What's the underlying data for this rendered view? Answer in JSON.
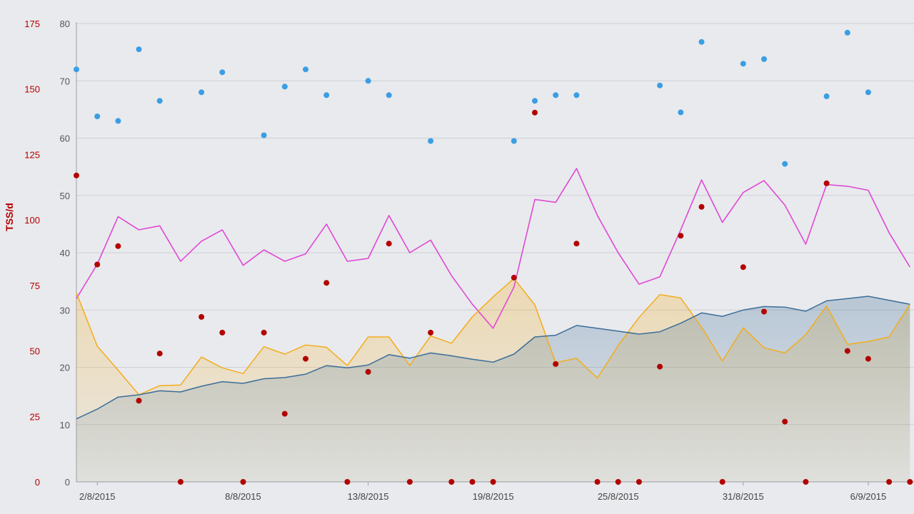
{
  "chart_data": {
    "type": "line",
    "title": "",
    "xlabel": "",
    "x_tick_labels": [
      "2/8/2015",
      "8/8/2015",
      "13/8/2015",
      "19/8/2015",
      "25/8/2015",
      "31/8/2015",
      "6/9/2015"
    ],
    "x_tick_indices": [
      1,
      8,
      14,
      20,
      26,
      32,
      38
    ],
    "x_range": [
      0,
      40
    ],
    "left_axis": {
      "label": "TSS/d",
      "ticks": [
        0,
        25,
        50,
        75,
        100,
        125,
        150,
        175
      ],
      "range": [
        0,
        175
      ],
      "color": "#b30000"
    },
    "inner_axis": {
      "ticks": [
        0,
        10,
        20,
        30,
        40,
        50,
        60,
        70,
        80
      ],
      "range": [
        0,
        80
      ],
      "color": "#555555"
    },
    "grid": true,
    "series": [
      {
        "kind": "scatter",
        "axis": "inner",
        "color": "#3a9ee4",
        "points": [
          [
            0,
            72
          ],
          [
            1,
            63.8
          ],
          [
            2,
            63
          ],
          [
            3,
            75.5
          ],
          [
            4,
            66.5
          ],
          [
            6,
            68
          ],
          [
            7,
            71.5
          ],
          [
            9,
            60.5
          ],
          [
            10,
            69
          ],
          [
            11,
            72
          ],
          [
            12,
            67.5
          ],
          [
            14,
            70
          ],
          [
            15,
            67.5
          ],
          [
            17,
            59.5
          ],
          [
            21,
            59.5
          ],
          [
            22,
            66.5
          ],
          [
            23,
            67.5
          ],
          [
            24,
            67.5
          ],
          [
            28,
            69.2
          ],
          [
            29,
            64.5
          ],
          [
            30,
            76.8
          ],
          [
            32,
            73
          ],
          [
            33,
            73.8
          ],
          [
            34,
            55.5
          ],
          [
            36,
            67.3
          ],
          [
            37,
            78.4
          ],
          [
            38,
            68
          ]
        ]
      },
      {
        "kind": "scatter",
        "axis": "left",
        "color": "#b30000",
        "points": [
          [
            0,
            117
          ],
          [
            1,
            83
          ],
          [
            2,
            90
          ],
          [
            3,
            31
          ],
          [
            4,
            49
          ],
          [
            5,
            0
          ],
          [
            6,
            63
          ],
          [
            7,
            57
          ],
          [
            8,
            0
          ],
          [
            9,
            57
          ],
          [
            10,
            26
          ],
          [
            11,
            47
          ],
          [
            12,
            76
          ],
          [
            13,
            0
          ],
          [
            14,
            42
          ],
          [
            15,
            91
          ],
          [
            16,
            0
          ],
          [
            17,
            57
          ],
          [
            18,
            0
          ],
          [
            19,
            0
          ],
          [
            20,
            0
          ],
          [
            21,
            78
          ],
          [
            22,
            141
          ],
          [
            23,
            45
          ],
          [
            24,
            91
          ],
          [
            25,
            0
          ],
          [
            26,
            0
          ],
          [
            27,
            0
          ],
          [
            28,
            44
          ],
          [
            29,
            94
          ],
          [
            30,
            105
          ],
          [
            31,
            0
          ],
          [
            32,
            82
          ],
          [
            33,
            65
          ],
          [
            34,
            23
          ],
          [
            35,
            0
          ],
          [
            36,
            114
          ],
          [
            37,
            50
          ],
          [
            38,
            47
          ],
          [
            39,
            0
          ],
          [
            40,
            0
          ]
        ]
      },
      {
        "kind": "line",
        "axis": "inner",
        "color": "#e048d6",
        "values": [
          32,
          38,
          46.3,
          44,
          44.7,
          38.5,
          42,
          44,
          37.8,
          40.5,
          38.5,
          39.8,
          45,
          38.5,
          39,
          46.5,
          40,
          42.2,
          36,
          31,
          26.8,
          34,
          49.3,
          48.8,
          54.7,
          46.5,
          40,
          34.5,
          35.8,
          44,
          52.7,
          45.3,
          50.5,
          52.6,
          48.3,
          41.5,
          51.9,
          51.6,
          50.9,
          43.5,
          37.5
        ]
      },
      {
        "kind": "area",
        "axis": "inner",
        "color": "#f3ad1d",
        "values": [
          33,
          23.7,
          19.5,
          15.2,
          16.8,
          16.9,
          21.8,
          19.9,
          18.9,
          23.6,
          22.3,
          23.9,
          23.5,
          20.3,
          25.3,
          25.3,
          20.3,
          25.5,
          24.2,
          28.8,
          32.3,
          35.5,
          30.9,
          20.8,
          21.6,
          18.1,
          23.8,
          28.7,
          32.7,
          32.1,
          27,
          21.1,
          26.9,
          23.4,
          22.5,
          25.7,
          30.7,
          24,
          24.5,
          25.3,
          31
        ]
      },
      {
        "kind": "area",
        "axis": "inner",
        "color": "#3c6e99",
        "values": [
          11,
          12.7,
          14.8,
          15.2,
          15.9,
          15.7,
          16.7,
          17.5,
          17.2,
          18,
          18.2,
          18.8,
          20.3,
          19.9,
          20.4,
          22.2,
          21.6,
          22.5,
          22,
          21.4,
          20.9,
          22.3,
          25.3,
          25.6,
          27.3,
          26.8,
          26.3,
          25.8,
          26.2,
          27.7,
          29.5,
          28.9,
          30,
          30.6,
          30.5,
          29.8,
          31.6,
          32,
          32.4,
          31.7,
          31
        ]
      }
    ]
  }
}
